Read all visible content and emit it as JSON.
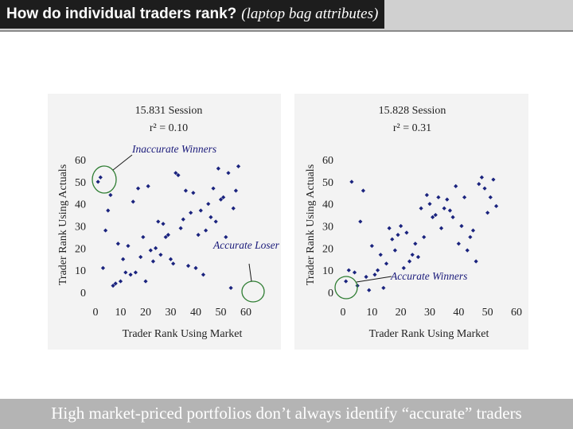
{
  "header": {
    "title": "How do individual traders rank?",
    "subtitle": "(laptop bag attributes)"
  },
  "footer": {
    "caption": "High market-priced portfolios don’t always identify “accurate” traders"
  },
  "colors": {
    "header_bg": "#1d1d1d",
    "footer_bg": "#b4b4b4",
    "panel_bg": "#f3f3f3",
    "point": "#1a237e",
    "highlight_circle": "#2e7d32",
    "annotation_text": "#1a1a7a"
  },
  "chart_data": [
    {
      "type": "scatter",
      "title": "15.831 Session",
      "subtitle": "r² = 0.10",
      "xlabel": "Trader Rank Using Market",
      "ylabel": "Trader Rank Using Actuals",
      "xlim": [
        0,
        60
      ],
      "ylim": [
        0,
        60
      ],
      "xticks": [
        0,
        10,
        20,
        30,
        40,
        50,
        60
      ],
      "yticks": [
        0,
        10,
        20,
        30,
        40,
        50,
        60
      ],
      "grid": false,
      "points": [
        [
          1,
          50
        ],
        [
          2,
          52
        ],
        [
          3,
          11
        ],
        [
          4,
          28
        ],
        [
          5,
          37
        ],
        [
          6,
          44
        ],
        [
          7,
          3
        ],
        [
          8,
          4
        ],
        [
          9,
          22
        ],
        [
          10,
          5
        ],
        [
          11,
          15
        ],
        [
          12,
          9
        ],
        [
          13,
          21
        ],
        [
          14,
          8
        ],
        [
          15,
          41
        ],
        [
          16,
          9
        ],
        [
          17,
          47
        ],
        [
          18,
          16
        ],
        [
          19,
          25
        ],
        [
          20,
          5
        ],
        [
          21,
          48
        ],
        [
          22,
          19
        ],
        [
          23,
          14
        ],
        [
          24,
          20
        ],
        [
          25,
          32
        ],
        [
          26,
          17
        ],
        [
          27,
          31
        ],
        [
          28,
          25
        ],
        [
          29,
          26
        ],
        [
          30,
          15
        ],
        [
          31,
          13
        ],
        [
          32,
          54
        ],
        [
          33,
          53
        ],
        [
          34,
          29
        ],
        [
          35,
          33
        ],
        [
          36,
          46
        ],
        [
          37,
          12
        ],
        [
          38,
          36
        ],
        [
          39,
          45
        ],
        [
          40,
          11
        ],
        [
          41,
          26
        ],
        [
          42,
          37
        ],
        [
          43,
          8
        ],
        [
          44,
          28
        ],
        [
          45,
          40
        ],
        [
          46,
          34
        ],
        [
          47,
          47
        ],
        [
          48,
          32
        ],
        [
          49,
          56
        ],
        [
          50,
          42
        ],
        [
          51,
          43
        ],
        [
          52,
          25
        ],
        [
          53,
          54
        ],
        [
          54,
          2
        ],
        [
          55,
          38
        ],
        [
          56,
          46
        ],
        [
          57,
          57
        ]
      ],
      "annotations": [
        {
          "text": "Inaccurate Winners",
          "target": "top-left cluster"
        },
        {
          "text": "Accurate Loser",
          "target": "point near (54, 2)"
        }
      ]
    },
    {
      "type": "scatter",
      "title": "15.828 Session",
      "subtitle": "r² = 0.31",
      "xlabel": "Trader Rank Using Market",
      "ylabel": "Trader Rank Using Actuals",
      "xlim": [
        0,
        60
      ],
      "ylim": [
        0,
        60
      ],
      "xticks": [
        0,
        10,
        20,
        30,
        40,
        50,
        60
      ],
      "yticks": [
        0,
        10,
        20,
        30,
        40,
        50,
        60
      ],
      "grid": false,
      "points": [
        [
          1,
          5
        ],
        [
          2,
          10
        ],
        [
          3,
          50
        ],
        [
          4,
          9
        ],
        [
          5,
          3
        ],
        [
          6,
          32
        ],
        [
          7,
          46
        ],
        [
          8,
          7
        ],
        [
          9,
          1
        ],
        [
          10,
          21
        ],
        [
          11,
          8
        ],
        [
          12,
          10
        ],
        [
          13,
          17
        ],
        [
          14,
          2
        ],
        [
          15,
          13
        ],
        [
          16,
          29
        ],
        [
          17,
          24
        ],
        [
          18,
          19
        ],
        [
          19,
          26
        ],
        [
          20,
          30
        ],
        [
          21,
          11
        ],
        [
          22,
          27
        ],
        [
          23,
          14
        ],
        [
          24,
          17
        ],
        [
          25,
          22
        ],
        [
          26,
          16
        ],
        [
          27,
          38
        ],
        [
          28,
          25
        ],
        [
          29,
          44
        ],
        [
          30,
          40
        ],
        [
          31,
          34
        ],
        [
          32,
          35
        ],
        [
          33,
          43
        ],
        [
          34,
          29
        ],
        [
          35,
          38
        ],
        [
          36,
          42
        ],
        [
          37,
          37
        ],
        [
          38,
          34
        ],
        [
          39,
          48
        ],
        [
          40,
          22
        ],
        [
          41,
          30
        ],
        [
          42,
          43
        ],
        [
          43,
          19
        ],
        [
          44,
          25
        ],
        [
          45,
          28
        ],
        [
          46,
          14
        ],
        [
          47,
          49
        ],
        [
          48,
          52
        ],
        [
          49,
          47
        ],
        [
          50,
          36
        ],
        [
          51,
          43
        ],
        [
          52,
          51
        ],
        [
          53,
          39
        ]
      ],
      "annotations": [
        {
          "text": "Accurate Winners",
          "target": "bottom-left cluster"
        }
      ]
    }
  ]
}
